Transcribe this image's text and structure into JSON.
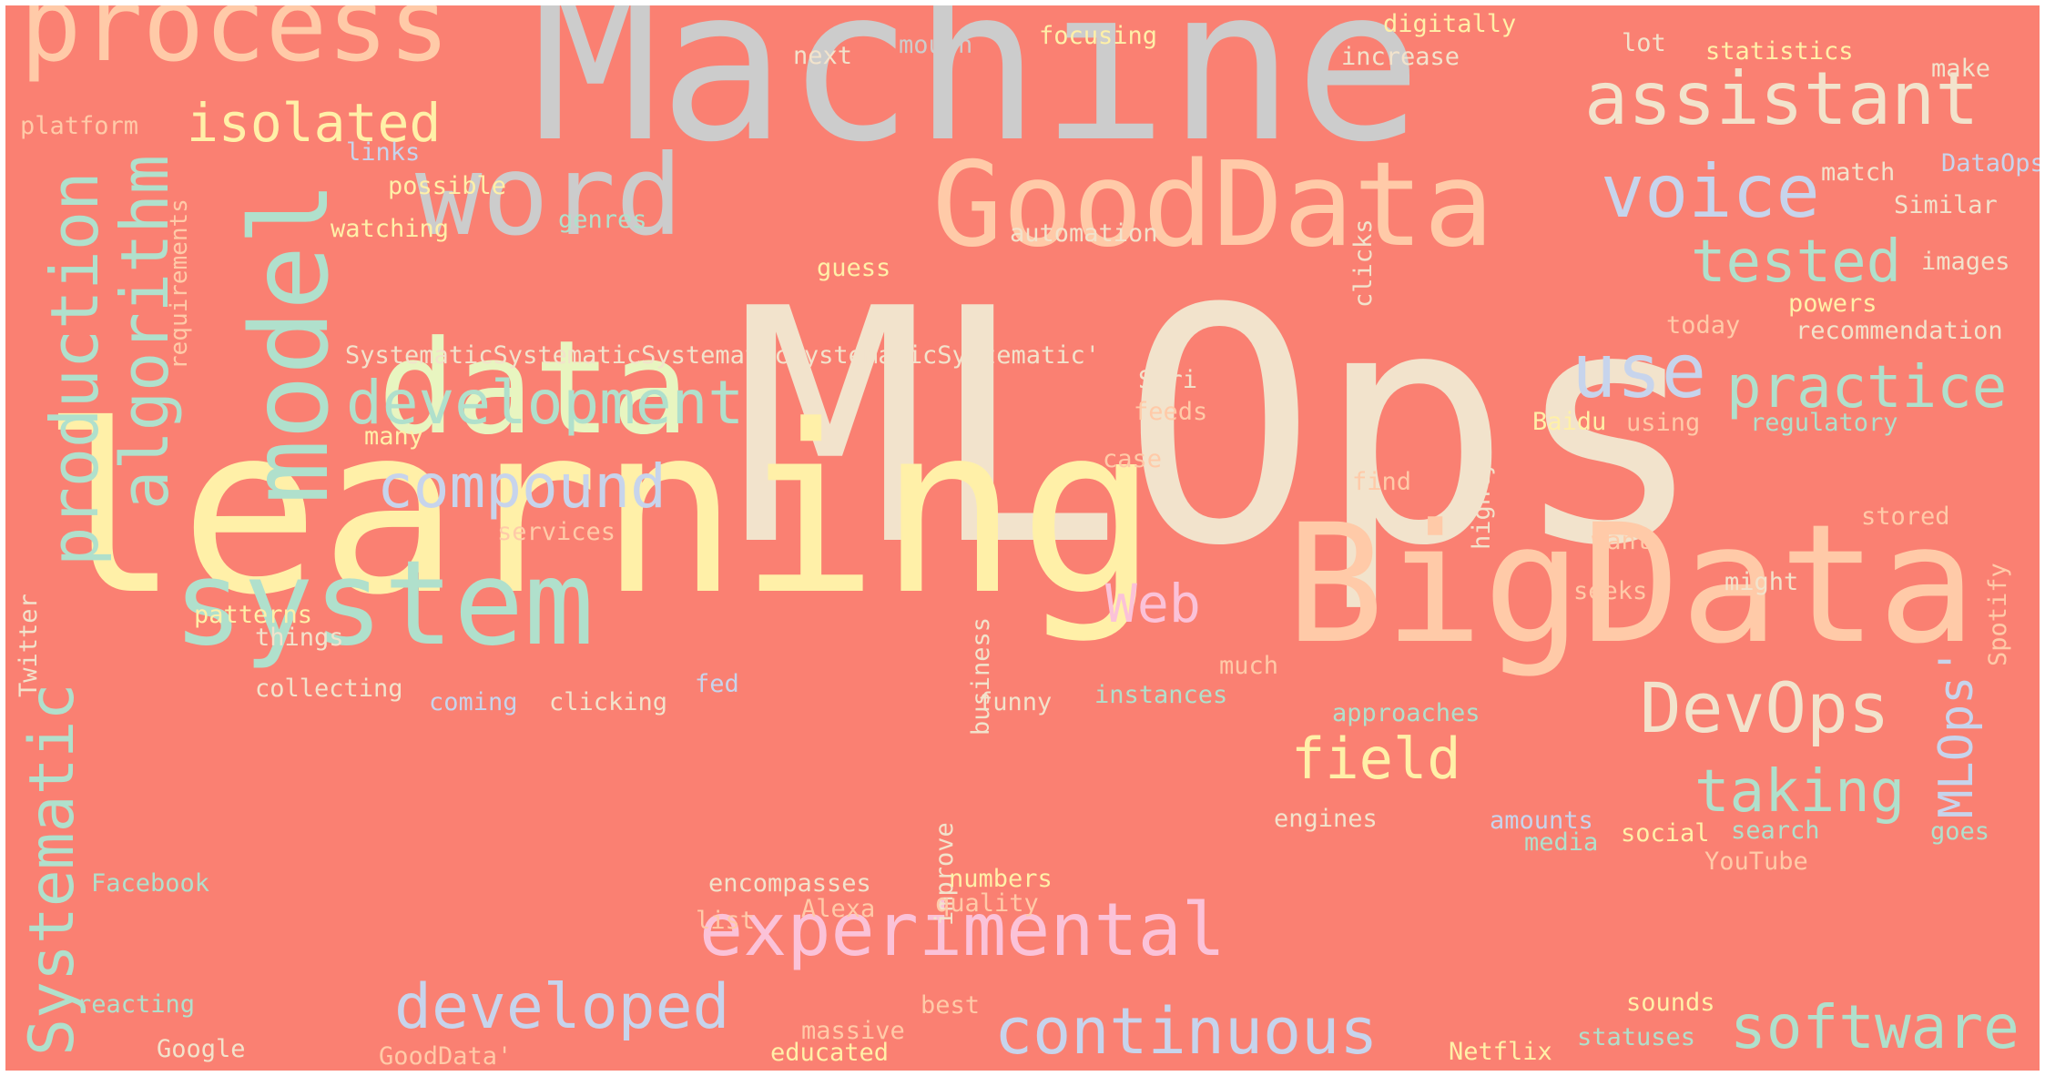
{
  "background": "#fa8072",
  "palette": [
    "#f2e3cc",
    "#cccccc",
    "#fff0a8",
    "#b0e0cc",
    "#ffcaa8",
    "#c7d4ec",
    "#fbc2d8",
    "#e8f5c0"
  ],
  "words": [
    {
      "id": "mlops",
      "text": "MLOps"
    },
    {
      "id": "machine",
      "text": "Machine"
    },
    {
      "id": "learning",
      "text": "learning"
    },
    {
      "id": "bigdata",
      "text": "BigData"
    },
    {
      "id": "gooddata",
      "text": "GoodData"
    },
    {
      "id": "data",
      "text": "data"
    },
    {
      "id": "system",
      "text": "system"
    },
    {
      "id": "model",
      "text": "model"
    },
    {
      "id": "word",
      "text": "word"
    },
    {
      "id": "process",
      "text": "process"
    },
    {
      "id": "assistant",
      "text": "assistant"
    },
    {
      "id": "voice",
      "text": "voice"
    },
    {
      "id": "experimental",
      "text": "experimental"
    },
    {
      "id": "algorithm",
      "text": "algorithm"
    },
    {
      "id": "production",
      "text": "production"
    },
    {
      "id": "systematic-v",
      "text": "Systematic"
    },
    {
      "id": "devops",
      "text": "DevOps"
    },
    {
      "id": "continuous",
      "text": "continuous"
    },
    {
      "id": "developed",
      "text": "developed"
    },
    {
      "id": "development",
      "text": "development"
    },
    {
      "id": "compound",
      "text": "compound"
    },
    {
      "id": "isolated",
      "text": "isolated"
    },
    {
      "id": "practice",
      "text": "practice"
    },
    {
      "id": "use",
      "text": "use"
    },
    {
      "id": "tested",
      "text": "tested"
    },
    {
      "id": "taking",
      "text": "taking"
    },
    {
      "id": "software",
      "text": "software"
    },
    {
      "id": "field",
      "text": "field"
    },
    {
      "id": "web",
      "text": "Web"
    },
    {
      "id": "mlops-quote",
      "text": "MLOps'"
    },
    {
      "id": "requirements",
      "text": "requirements"
    },
    {
      "id": "systematic-repeat",
      "text": "SystematicSystematicSystematicSystematicSystematic'"
    },
    {
      "id": "platform",
      "text": "platform"
    },
    {
      "id": "links",
      "text": "links"
    },
    {
      "id": "possible",
      "text": "possible"
    },
    {
      "id": "watching",
      "text": "watching"
    },
    {
      "id": "genres",
      "text": "genres"
    },
    {
      "id": "guess",
      "text": "guess"
    },
    {
      "id": "next",
      "text": "next"
    },
    {
      "id": "mouth",
      "text": "mouth"
    },
    {
      "id": "focusing",
      "text": "focusing"
    },
    {
      "id": "digitally",
      "text": "digitally"
    },
    {
      "id": "increase",
      "text": "increase"
    },
    {
      "id": "lot",
      "text": "lot"
    },
    {
      "id": "statistics",
      "text": "statistics"
    },
    {
      "id": "make",
      "text": "make"
    },
    {
      "id": "clicks",
      "text": "clicks"
    },
    {
      "id": "match",
      "text": "match"
    },
    {
      "id": "dataops",
      "text": "DataOps"
    },
    {
      "id": "similar",
      "text": "Similar"
    },
    {
      "id": "images",
      "text": "images"
    },
    {
      "id": "automation",
      "text": "automation"
    },
    {
      "id": "powers",
      "text": "powers"
    },
    {
      "id": "today",
      "text": "today"
    },
    {
      "id": "recommendation",
      "text": "recommendation"
    },
    {
      "id": "many",
      "text": "many"
    },
    {
      "id": "siri",
      "text": "Siri"
    },
    {
      "id": "feeds",
      "text": "feeds"
    },
    {
      "id": "case",
      "text": "case"
    },
    {
      "id": "highly",
      "text": "highly"
    },
    {
      "id": "baidu",
      "text": "Baidu"
    },
    {
      "id": "using",
      "text": "using"
    },
    {
      "id": "regulatory",
      "text": "regulatory"
    },
    {
      "id": "find",
      "text": "find"
    },
    {
      "id": "services",
      "text": "services"
    },
    {
      "id": "business",
      "text": "business"
    },
    {
      "id": "spotify",
      "text": "Spotify"
    },
    {
      "id": "stored",
      "text": "stored"
    },
    {
      "id": "twitter",
      "text": "Twitter"
    },
    {
      "id": "want",
      "text": "want"
    },
    {
      "id": "seeks",
      "text": "seeks"
    },
    {
      "id": "might",
      "text": "might"
    },
    {
      "id": "patterns",
      "text": "patterns"
    },
    {
      "id": "things",
      "text": "things"
    },
    {
      "id": "much",
      "text": "much"
    },
    {
      "id": "collecting",
      "text": "collecting"
    },
    {
      "id": "coming",
      "text": "coming"
    },
    {
      "id": "clicking",
      "text": "clicking"
    },
    {
      "id": "fed",
      "text": "fed"
    },
    {
      "id": "funny",
      "text": "funny"
    },
    {
      "id": "instances",
      "text": "instances"
    },
    {
      "id": "approaches",
      "text": "approaches"
    },
    {
      "id": "improve",
      "text": "improve"
    },
    {
      "id": "engines",
      "text": "engines"
    },
    {
      "id": "amounts",
      "text": "amounts"
    },
    {
      "id": "social",
      "text": "social"
    },
    {
      "id": "search",
      "text": "search"
    },
    {
      "id": "goes",
      "text": "goes"
    },
    {
      "id": "media",
      "text": "media"
    },
    {
      "id": "youtube",
      "text": "YouTube"
    },
    {
      "id": "facebook",
      "text": "Facebook"
    },
    {
      "id": "encompasses",
      "text": "encompasses"
    },
    {
      "id": "numbers",
      "text": "numbers"
    },
    {
      "id": "alexa",
      "text": "Alexa"
    },
    {
      "id": "quality",
      "text": "quality"
    },
    {
      "id": "list",
      "text": "list"
    },
    {
      "id": "reacting",
      "text": "reacting"
    },
    {
      "id": "best",
      "text": "best"
    },
    {
      "id": "sounds",
      "text": "sounds"
    },
    {
      "id": "massive",
      "text": "massive"
    },
    {
      "id": "google",
      "text": "Google"
    },
    {
      "id": "gooddata-quote",
      "text": "GoodData'"
    },
    {
      "id": "educated",
      "text": "educated"
    },
    {
      "id": "netflix",
      "text": "Netflix"
    },
    {
      "id": "statuses",
      "text": "statuses"
    }
  ]
}
